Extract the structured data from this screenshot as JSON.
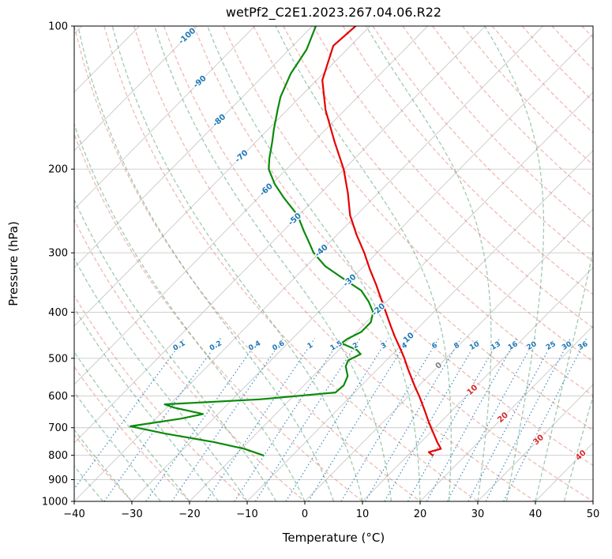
{
  "title": "wetPf2_C2E1.2023.267.04.06.R22",
  "axes": {
    "x_label": "Temperature (°C)",
    "y_label": "Pressure (hPa)",
    "x_tick_values": [
      -40,
      -30,
      -20,
      -10,
      0,
      10,
      20,
      30,
      40,
      50
    ],
    "x_tick_labels": [
      "−40",
      "−30",
      "−20",
      "−10",
      "0",
      "10",
      "20",
      "30",
      "40",
      "50"
    ],
    "y_tick_values": [
      100,
      200,
      300,
      400,
      500,
      600,
      700,
      800,
      900,
      1000
    ]
  },
  "chart_data": {
    "type": "line",
    "variant": "skew-T log-p atmospheric sounding",
    "title": "wetPf2_C2E1.2023.267.04.06.R22",
    "xlabel": "Temperature (°C)",
    "ylabel": "Pressure (hPa)",
    "x_range_degC": [
      -40,
      50
    ],
    "pressure_range_hPa": [
      100,
      1000
    ],
    "pressure_log_scale": true,
    "skew_deg": 45,
    "grid": true,
    "series": [
      {
        "name": "temperature",
        "color": "#e60000",
        "points_p_hPa_T_degC": [
          [
            100,
            -72.5
          ],
          [
            110,
            -73.0
          ],
          [
            130,
            -69.0
          ],
          [
            150,
            -63.4
          ],
          [
            175,
            -56.4
          ],
          [
            200,
            -50.1
          ],
          [
            225,
            -45.2
          ],
          [
            250,
            -41.1
          ],
          [
            275,
            -36.6
          ],
          [
            300,
            -32.2
          ],
          [
            325,
            -28.4
          ],
          [
            350,
            -24.7
          ],
          [
            375,
            -21.4
          ],
          [
            400,
            -18.3
          ],
          [
            425,
            -15.4
          ],
          [
            450,
            -12.6
          ],
          [
            475,
            -9.8
          ],
          [
            500,
            -7.2
          ],
          [
            525,
            -4.9
          ],
          [
            550,
            -2.6
          ],
          [
            575,
            -0.4
          ],
          [
            600,
            1.8
          ],
          [
            625,
            3.8
          ],
          [
            650,
            5.7
          ],
          [
            675,
            7.5
          ],
          [
            700,
            9.3
          ],
          [
            725,
            11.1
          ],
          [
            750,
            12.8
          ],
          [
            775,
            14.6
          ],
          [
            788,
            13.1
          ],
          [
            800,
            14.3
          ]
        ]
      },
      {
        "name": "dewpoint",
        "color": "#0a8a0a",
        "points_p_hPa_T_degC": [
          [
            100,
            -79.4
          ],
          [
            112,
            -77.0
          ],
          [
            126,
            -75.6
          ],
          [
            141,
            -73.4
          ],
          [
            150,
            -71.7
          ],
          [
            165,
            -69.0
          ],
          [
            175,
            -67.2
          ],
          [
            190,
            -64.8
          ],
          [
            200,
            -63.1
          ],
          [
            215,
            -59.5
          ],
          [
            230,
            -55.5
          ],
          [
            250,
            -50.2
          ],
          [
            270,
            -46.4
          ],
          [
            285,
            -43.6
          ],
          [
            300,
            -41.0
          ],
          [
            320,
            -36.7
          ],
          [
            340,
            -31.4
          ],
          [
            360,
            -26.3
          ],
          [
            380,
            -23.1
          ],
          [
            400,
            -20.5
          ],
          [
            420,
            -19.2
          ],
          [
            440,
            -19.2
          ],
          [
            455,
            -20.4
          ],
          [
            465,
            -20.7
          ],
          [
            480,
            -16.9
          ],
          [
            490,
            -15.5
          ],
          [
            505,
            -16.6
          ],
          [
            520,
            -16.0
          ],
          [
            545,
            -14.0
          ],
          [
            570,
            -13.1
          ],
          [
            590,
            -13.3
          ],
          [
            610,
            -25.3
          ],
          [
            625,
            -40.9
          ],
          [
            635,
            -38.7
          ],
          [
            655,
            -32.6
          ],
          [
            670,
            -35.7
          ],
          [
            695,
            -43.1
          ],
          [
            720,
            -35.9
          ],
          [
            750,
            -26.0
          ],
          [
            775,
            -19.5
          ],
          [
            800,
            -15.1
          ]
        ]
      }
    ],
    "isotherms": {
      "step_degC": 10,
      "labels": [
        {
          "t": -100,
          "p": 105,
          "text": "-100"
        },
        {
          "t": -90,
          "p": 131,
          "text": "-90"
        },
        {
          "t": -80,
          "p": 158,
          "text": "-80"
        },
        {
          "t": -70,
          "p": 188,
          "text": "-70"
        },
        {
          "t": -60,
          "p": 221,
          "text": "-60"
        },
        {
          "t": -50,
          "p": 255,
          "text": "-50"
        },
        {
          "t": -40,
          "p": 297,
          "text": "-40"
        },
        {
          "t": -30,
          "p": 343,
          "text": "-30"
        },
        {
          "t": -20,
          "p": 395,
          "text": "-20"
        },
        {
          "t": -10,
          "p": 455,
          "text": "-10"
        },
        {
          "t": 0,
          "p": 518,
          "text": "0"
        },
        {
          "t": 10,
          "p": 583,
          "text": "10"
        },
        {
          "t": 20,
          "p": 666,
          "text": "20"
        },
        {
          "t": 30,
          "p": 742,
          "text": "30"
        },
        {
          "t": 40,
          "p": 800,
          "text": "40"
        }
      ]
    },
    "dry_adiabats_theta_degC": [
      -30,
      -20,
      -10,
      0,
      10,
      20,
      30,
      40,
      50,
      60,
      70,
      80,
      90,
      100,
      110,
      120,
      130,
      140,
      150,
      160,
      170,
      180,
      190,
      200,
      210
    ],
    "moist_adiabats_thetaw_degC": [
      -40,
      -35,
      -30,
      -25,
      -20,
      -15,
      -10,
      -5,
      0,
      5,
      10,
      15,
      20,
      25,
      30,
      35,
      40,
      45,
      50,
      60,
      70,
      80
    ],
    "mixing_ratio_g_per_kg": [
      0.1,
      0.2,
      0.4,
      0.6,
      1,
      1.5,
      2,
      3,
      4,
      6,
      8,
      10,
      13,
      16,
      20,
      25,
      30,
      36
    ],
    "mixing_label_p_hPa": 470,
    "mixing_lines_top_p_hPa": 452
  },
  "colors": {
    "frame": "#000000",
    "grid": "#c9c9c9",
    "isotherm": "#c9c9c9",
    "dry_adiabat": "#d65f4d",
    "moist_adiabat": "#2e8b57",
    "mixing_ratio": "#1f77b4",
    "temperature": "#e60000",
    "dewpoint": "#0a8a0a",
    "label_negative": "#1f77b4",
    "label_zero": "#808080",
    "label_positive": "#d62728",
    "tick_text": "#000000"
  }
}
